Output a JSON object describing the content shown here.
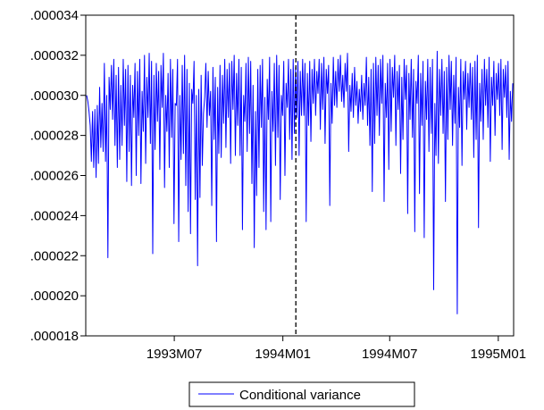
{
  "chart_data": {
    "type": "line",
    "series": [
      {
        "name": "Conditional variance",
        "color": "#0000ff",
        "start": "1993-02-01",
        "frequency": "daily (trading days)",
        "values": [
          3e-05,
          2.97e-05,
          2.92e-05,
          2.85e-05,
          2.67e-05,
          2.92e-05,
          2.64e-05,
          2.93e-05,
          2.59e-05,
          2.95e-05,
          2.66e-05,
          3.04e-05,
          2.74e-05,
          2.96e-05,
          2.72e-05,
          3.16e-05,
          2.67e-05,
          3e-05,
          2.19e-05,
          3.09e-05,
          2.93e-05,
          3.15e-05,
          2.88e-05,
          3.18e-05,
          2.75e-05,
          3.1e-05,
          2.64e-05,
          3.14e-05,
          2.68e-05,
          3.05e-05,
          2.75e-05,
          3.18e-05,
          2.85e-05,
          3.13e-05,
          2.57e-05,
          3.15e-05,
          2.72e-05,
          3.1e-05,
          2.55e-05,
          3.05e-05,
          2.89e-05,
          3.16e-05,
          2.6e-05,
          3.12e-05,
          2.8e-05,
          3.18e-05,
          2.56e-05,
          3.02e-05,
          2.82e-05,
          3.2e-05,
          2.66e-05,
          3.09e-05,
          2.89e-05,
          3.21e-05,
          2.76e-05,
          3.17e-05,
          2.21e-05,
          3.1e-05,
          2.73e-05,
          3.16e-05,
          2.87e-05,
          3.12e-05,
          2.63e-05,
          3.15e-05,
          2.94e-05,
          3.21e-05,
          2.54e-05,
          3e-05,
          2.82e-05,
          3.11e-05,
          2.64e-05,
          3.18e-05,
          2.79e-05,
          3.13e-05,
          2.36e-05,
          2.96e-05,
          2.95e-05,
          3.18e-05,
          2.27e-05,
          3e-05,
          2.68e-05,
          3.15e-05,
          2.71e-05,
          3.2e-05,
          2.55e-05,
          3.13e-05,
          2.42e-05,
          3.06e-05,
          2.31e-05,
          3.03e-05,
          2.96e-05,
          3.17e-05,
          2.48e-05,
          3e-05,
          2.15e-05,
          3.03e-05,
          2.49e-05,
          3.1e-05,
          2.65e-05,
          2.91e-05,
          2.99e-05,
          3.16e-05,
          2.84e-05,
          3.12e-05,
          2.9e-05,
          3.02e-05,
          2.45e-05,
          3.14e-05,
          2.78e-05,
          3.09e-05,
          2.27e-05,
          3.04e-05,
          2.71e-05,
          3.15e-05,
          2.69e-05,
          3.1e-05,
          2.86e-05,
          3.18e-05,
          2.74e-05,
          3.13e-05,
          2.89e-05,
          3.16e-05,
          2.66e-05,
          3.17e-05,
          2.93e-05,
          3.2e-05,
          2.7e-05,
          3.11e-05,
          2.85e-05,
          3.18e-05,
          2.7e-05,
          3.14e-05,
          2.33e-05,
          3e-05,
          2.87e-05,
          3.16e-05,
          2.72e-05,
          3.19e-05,
          2.81e-05,
          3.17e-05,
          2.56e-05,
          3.05e-05,
          2.24e-05,
          2.92e-05,
          2.5e-05,
          3.13e-05,
          2.64e-05,
          3.15e-05,
          2.84e-05,
          3.18e-05,
          2.42e-05,
          2.99e-05,
          2.33e-05,
          3.08e-05,
          2.88e-05,
          3.19e-05,
          2.37e-05,
          3.02e-05,
          2.82e-05,
          3.16e-05,
          2.65e-05,
          3.2e-05,
          2.79e-05,
          3.15e-05,
          2.48e-05,
          3e-05,
          2.9e-05,
          3.17e-05,
          2.6e-05,
          3.06e-05,
          2.94e-05,
          3.18e-05,
          2.78e-05,
          3.13e-05,
          2.68e-05,
          3.18e-05,
          2.81e-05,
          3.14e-05,
          2.89e-05,
          3.17e-05,
          2.7e-05,
          3.12e-05,
          2.9e-05,
          3.18e-05,
          2.9e-05,
          3.16e-05,
          2.37e-05,
          3.11e-05,
          2.85e-05,
          3.17e-05,
          2.77e-05,
          3.13e-05,
          2.96e-05,
          3.18e-05,
          2.9e-05,
          3.12e-05,
          3.01e-05,
          3.18e-05,
          2.83e-05,
          3.16e-05,
          2.93e-05,
          3.19e-05,
          2.76e-05,
          3.13e-05,
          3.01e-05,
          3.15e-05,
          2.45e-05,
          3.06e-05,
          2.86e-05,
          3.19e-05,
          2.95e-05,
          3.12e-05,
          2.94e-05,
          3.18e-05,
          3.02e-05,
          3.2e-05,
          2.97e-05,
          3.1e-05,
          2.94e-05,
          3.16e-05,
          3.02e-05,
          3.21e-05,
          2.72e-05,
          3.05e-05,
          2.92e-05,
          3.11e-05,
          2.89e-05,
          3.14e-05,
          2.95e-05,
          3.07e-05,
          2.86e-05,
          3.03e-05,
          2.92e-05,
          3.1e-05,
          2.88e-05,
          3.06e-05,
          2.95e-05,
          3.19e-05,
          2.85e-05,
          3.09e-05,
          2.75e-05,
          3.13e-05,
          2.52e-05,
          3.16e-05,
          2.76e-05,
          3.19e-05,
          2.9e-05,
          3.15e-05,
          2.8e-05,
          3.18e-05,
          2.96e-05,
          3.2e-05,
          2.47e-05,
          3.06e-05,
          2.89e-05,
          3.16e-05,
          2.63e-05,
          3.18e-05,
          2.82e-05,
          3.14e-05,
          2.99e-05,
          3.2e-05,
          2.75e-05,
          3.12e-05,
          2.93e-05,
          3.15e-05,
          2.61e-05,
          3.09e-05,
          2.78e-05,
          3.18e-05,
          2.98e-05,
          3.15e-05,
          2.41e-05,
          3.11e-05,
          2.88e-05,
          3.18e-05,
          2.79e-05,
          3.13e-05,
          2.32e-05,
          3.07e-05,
          2.96e-05,
          3.2e-05,
          2.51e-05,
          3.11e-05,
          2.85e-05,
          3.17e-05,
          2.29e-05,
          3.07e-05,
          2.88e-05,
          3.18e-05,
          2.72e-05,
          3.14e-05,
          2.81e-05,
          3.18e-05,
          2.03e-05,
          2.96e-05,
          2.7e-05,
          3.22e-05,
          2.66e-05,
          3.13e-05,
          2.9e-05,
          3.18e-05,
          2.81e-05,
          3.12e-05,
          2.47e-05,
          3.14e-05,
          2.78e-05,
          3.2e-05,
          2.93e-05,
          3.17e-05,
          2.75e-05,
          3.1e-05,
          2.86e-05,
          3.19e-05,
          1.91e-05,
          3.04e-05,
          2.84e-05,
          3.18e-05,
          2.65e-05,
          3.12e-05,
          2.98e-05,
          3.17e-05,
          2.83e-05,
          3.11e-05,
          2.94e-05,
          3.16e-05,
          2.88e-05,
          3.14e-05,
          2.69e-05,
          3.17e-05,
          2.78e-05,
          3.2e-05,
          2.34e-05,
          3.06e-05,
          2.87e-05,
          3.13e-05,
          2.78e-05,
          3.18e-05,
          2.95e-05,
          3.13e-05,
          2.84e-05,
          3.19e-05,
          2.67e-05,
          3.09e-05,
          2.95e-05,
          3.17e-05,
          2.8e-05,
          3.11e-05,
          2.98e-05,
          3.16e-05,
          2.9e-05,
          3.18e-05,
          2.73e-05,
          3.13e-05,
          2.99e-05,
          3.15e-05,
          2.89e-05,
          3.17e-05,
          2.68e-05,
          3.02e-05,
          2.87e-05,
          3.06e-05
        ]
      }
    ],
    "xlabel": "",
    "ylabel": "",
    "xlim": [
      "1993-02-01",
      "1995-01-27"
    ],
    "ylim": [
      1.8e-05,
      3.4e-05
    ],
    "y_ticks": [
      {
        "value": 1.8e-05,
        "label": ".000018"
      },
      {
        "value": 2e-05,
        "label": ".000020"
      },
      {
        "value": 2.2e-05,
        "label": ".000022"
      },
      {
        "value": 2.4e-05,
        "label": ".000024"
      },
      {
        "value": 2.6e-05,
        "label": ".000026"
      },
      {
        "value": 2.8e-05,
        "label": ".000028"
      },
      {
        "value": 3e-05,
        "label": ".000030"
      },
      {
        "value": 3.2e-05,
        "label": ".000032"
      },
      {
        "value": 3.4e-05,
        "label": ".000034"
      }
    ],
    "x_ticks": [
      {
        "value": "1993-07-01",
        "label": "1993M07"
      },
      {
        "value": "1994-01-01",
        "label": "1994M01"
      },
      {
        "value": "1994-07-01",
        "label": "1994M07"
      },
      {
        "value": "1995-01-01",
        "label": "1995M01"
      }
    ],
    "reference_line": {
      "value": "1994-01-23",
      "style": "dashed",
      "color": "#000000"
    },
    "grid": false,
    "legend": {
      "position": "bottom-center",
      "entries": [
        "Conditional variance"
      ]
    }
  }
}
